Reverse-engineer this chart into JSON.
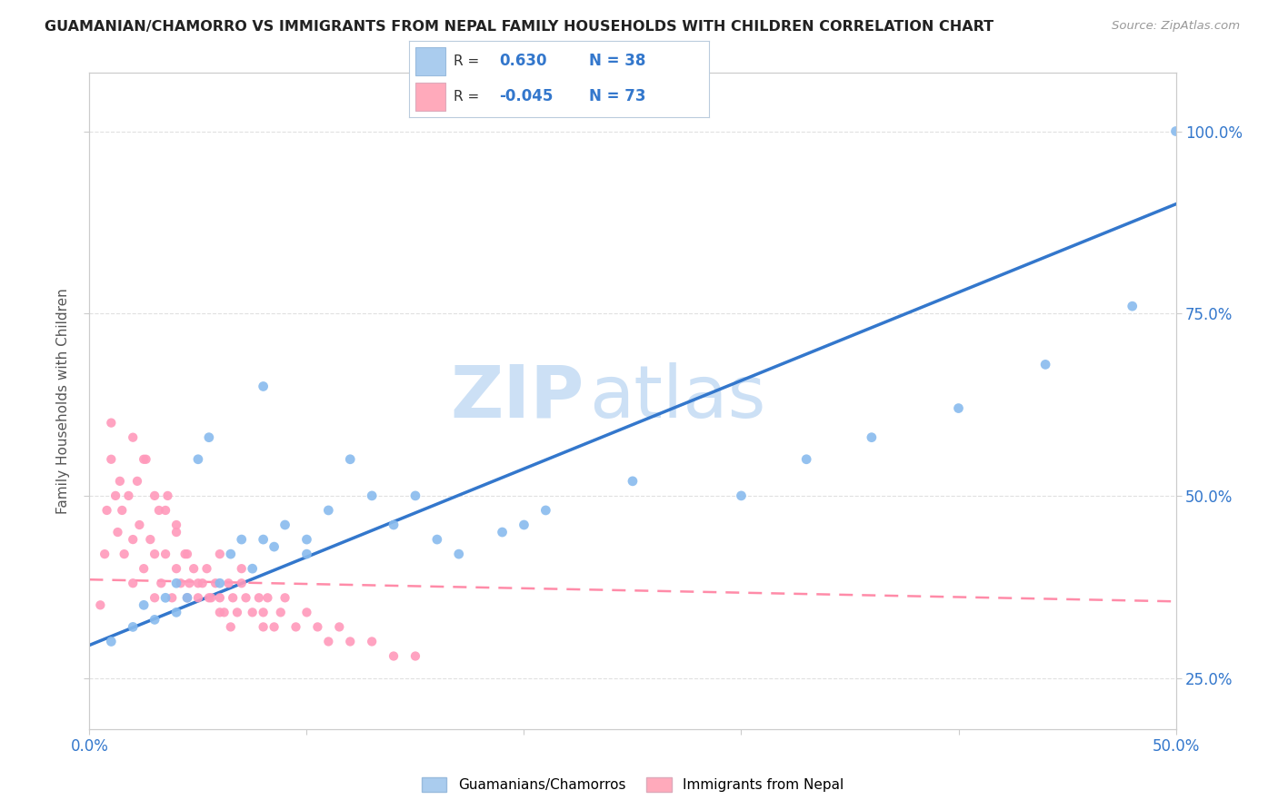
{
  "title": "GUAMANIAN/CHAMORRO VS IMMIGRANTS FROM NEPAL FAMILY HOUSEHOLDS WITH CHILDREN CORRELATION CHART",
  "source": "Source: ZipAtlas.com",
  "ylabel": "Family Households with Children",
  "xlim": [
    0.0,
    0.5
  ],
  "ylim": [
    0.18,
    1.08
  ],
  "legend_color1": "#aaccee",
  "legend_color2": "#ffaabb",
  "trend1_color": "#3377cc",
  "trend2_color": "#ff7799",
  "scatter1_color": "#88bbee",
  "scatter2_color": "#ff99bb",
  "watermark_zip": "ZIP",
  "watermark_atlas": "atlas",
  "watermark_color": "#cce0f5",
  "background_color": "#ffffff",
  "grid_color": "#e0e0e0",
  "guam_x": [
    0.01,
    0.02,
    0.025,
    0.03,
    0.035,
    0.04,
    0.04,
    0.045,
    0.05,
    0.055,
    0.06,
    0.065,
    0.07,
    0.075,
    0.08,
    0.085,
    0.09,
    0.1,
    0.11,
    0.12,
    0.13,
    0.14,
    0.15,
    0.16,
    0.17,
    0.19,
    0.21,
    0.25,
    0.3,
    0.33,
    0.36,
    0.4,
    0.44,
    0.48,
    0.5,
    0.1,
    0.2,
    0.08
  ],
  "guam_y": [
    0.3,
    0.32,
    0.35,
    0.33,
    0.36,
    0.34,
    0.38,
    0.36,
    0.55,
    0.58,
    0.38,
    0.42,
    0.44,
    0.4,
    0.44,
    0.43,
    0.46,
    0.44,
    0.48,
    0.55,
    0.5,
    0.46,
    0.5,
    0.44,
    0.42,
    0.45,
    0.48,
    0.52,
    0.5,
    0.55,
    0.58,
    0.62,
    0.68,
    0.76,
    1.0,
    0.42,
    0.46,
    0.65
  ],
  "nepal_x": [
    0.005,
    0.007,
    0.008,
    0.01,
    0.01,
    0.012,
    0.013,
    0.014,
    0.015,
    0.016,
    0.018,
    0.02,
    0.02,
    0.022,
    0.023,
    0.025,
    0.026,
    0.028,
    0.03,
    0.03,
    0.032,
    0.033,
    0.035,
    0.036,
    0.038,
    0.04,
    0.04,
    0.042,
    0.044,
    0.045,
    0.046,
    0.048,
    0.05,
    0.052,
    0.054,
    0.056,
    0.058,
    0.06,
    0.062,
    0.064,
    0.066,
    0.068,
    0.07,
    0.072,
    0.075,
    0.078,
    0.08,
    0.082,
    0.085,
    0.088,
    0.09,
    0.095,
    0.1,
    0.105,
    0.11,
    0.115,
    0.12,
    0.13,
    0.14,
    0.15,
    0.06,
    0.07,
    0.08,
    0.02,
    0.025,
    0.03,
    0.035,
    0.04,
    0.045,
    0.05,
    0.055,
    0.06,
    0.065
  ],
  "nepal_y": [
    0.35,
    0.42,
    0.48,
    0.55,
    0.6,
    0.5,
    0.45,
    0.52,
    0.48,
    0.42,
    0.5,
    0.38,
    0.44,
    0.52,
    0.46,
    0.4,
    0.55,
    0.44,
    0.36,
    0.42,
    0.48,
    0.38,
    0.42,
    0.5,
    0.36,
    0.4,
    0.46,
    0.38,
    0.42,
    0.36,
    0.38,
    0.4,
    0.36,
    0.38,
    0.4,
    0.36,
    0.38,
    0.36,
    0.34,
    0.38,
    0.36,
    0.34,
    0.38,
    0.36,
    0.34,
    0.36,
    0.34,
    0.36,
    0.32,
    0.34,
    0.36,
    0.32,
    0.34,
    0.32,
    0.3,
    0.32,
    0.3,
    0.3,
    0.28,
    0.28,
    0.42,
    0.4,
    0.32,
    0.58,
    0.55,
    0.5,
    0.48,
    0.45,
    0.42,
    0.38,
    0.36,
    0.34,
    0.32
  ],
  "trend1_x0": 0.0,
  "trend1_y0": 0.295,
  "trend1_x1": 0.5,
  "trend1_y1": 0.9,
  "trend2_x0": 0.0,
  "trend2_y0": 0.385,
  "trend2_x1": 0.5,
  "trend2_y1": 0.355
}
